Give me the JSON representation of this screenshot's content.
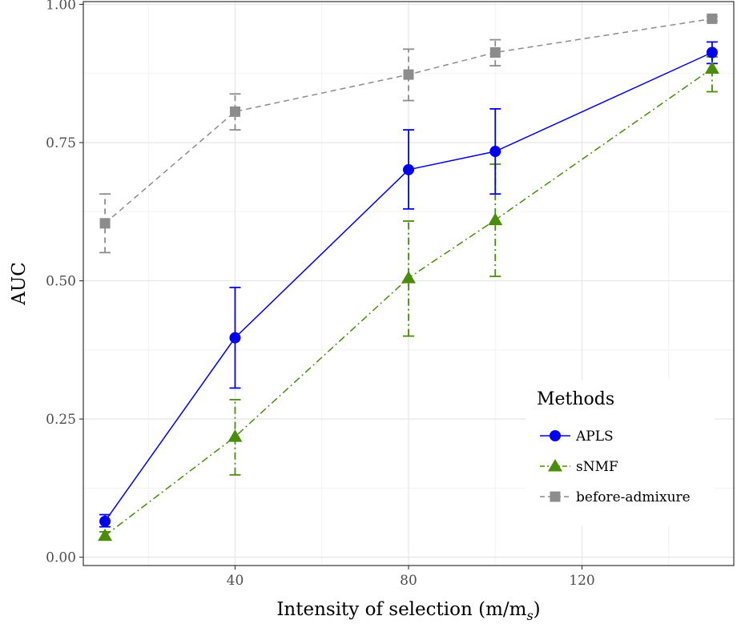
{
  "chart_data": {
    "type": "line",
    "xlabel": "Intensity of selection (m/m",
    "xlabel_subscript": "s",
    "xlabel_close": ")",
    "ylabel": "AUC",
    "xlim": [
      5,
      155
    ],
    "ylim": [
      -0.015,
      1.005
    ],
    "x_ticks": [
      40,
      80,
      120
    ],
    "x_tick_labels": [
      "40",
      "80",
      "120"
    ],
    "y_ticks": [
      0.0,
      0.25,
      0.5,
      0.75,
      1.0
    ],
    "y_tick_labels": [
      "0.00",
      "0.25",
      "0.50",
      "0.75",
      "1.00"
    ],
    "grid": true,
    "legend": {
      "title": "Methods",
      "position": "bottom-right"
    },
    "x": [
      10,
      40,
      80,
      100,
      150
    ],
    "series": [
      {
        "name": "APLS",
        "color": "#0000ee",
        "marker": "circle",
        "line_style": "solid",
        "values": [
          0.065,
          0.397,
          0.701,
          0.734,
          0.913
        ],
        "err_low": [
          0.055,
          0.306,
          0.63,
          0.657,
          0.893
        ],
        "err_high": [
          0.077,
          0.488,
          0.773,
          0.811,
          0.932
        ]
      },
      {
        "name": "sNMF",
        "color": "#4a8c0c",
        "marker": "triangle",
        "line_style": "dashdot",
        "values": [
          0.039,
          0.218,
          0.505,
          0.61,
          0.884
        ],
        "err_low": [
          0.033,
          0.149,
          0.4,
          0.508,
          0.842
        ],
        "err_high": [
          0.046,
          0.285,
          0.608,
          0.711,
          0.905
        ]
      },
      {
        "name": "before-admixure",
        "color": "#8c8c8c",
        "marker": "square",
        "line_style": "dashed",
        "values": [
          0.604,
          0.806,
          0.873,
          0.913,
          0.974
        ],
        "err_low": [
          0.551,
          0.773,
          0.826,
          0.889,
          0.97
        ],
        "err_high": [
          0.657,
          0.838,
          0.919,
          0.936,
          0.978
        ]
      }
    ]
  }
}
